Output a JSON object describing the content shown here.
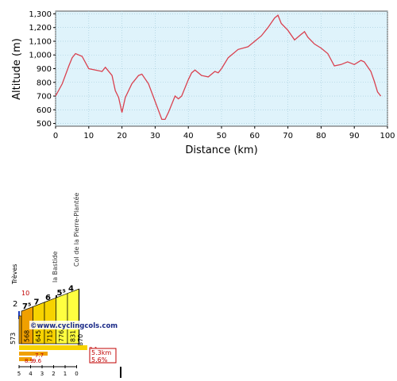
{
  "chart_data": [
    {
      "type": "line",
      "title": "",
      "xlabel": "Distance (km)",
      "ylabel": "Altitude (m)",
      "xlim": [
        0,
        100
      ],
      "ylim": [
        480,
        1320
      ],
      "x_ticks": [
        0,
        10,
        20,
        30,
        40,
        50,
        60,
        70,
        80,
        90,
        100
      ],
      "y_ticks": [
        500,
        600,
        700,
        800,
        900,
        1000,
        1100,
        1200,
        1300
      ],
      "y_tick_labels": [
        "500",
        "600",
        "700",
        "800",
        "900",
        "1,000",
        "1,100",
        "1,200",
        "1,300"
      ],
      "x_tick_labels": [
        "0",
        "10",
        "20",
        "30",
        "40",
        "50",
        "60",
        "70",
        "80",
        "90",
        "100"
      ],
      "grid": true,
      "colors": {
        "line": "#d9414f",
        "plot_bg": "#dff3fb",
        "grid": "#9ec8d8"
      },
      "series": [
        {
          "x": [
            0,
            2,
            4,
            5,
            6,
            8,
            10,
            12,
            14,
            15,
            17,
            18,
            19,
            20,
            21,
            23,
            25,
            26,
            28,
            30,
            32,
            33,
            34,
            36,
            37,
            38,
            40,
            41,
            42,
            44,
            46,
            48,
            49,
            50,
            52,
            55,
            58,
            60,
            62,
            64,
            66,
            67,
            68,
            70,
            72,
            74,
            75,
            76,
            78,
            80,
            82,
            84,
            86,
            88,
            90,
            92,
            93,
            95,
            96,
            97,
            98
          ],
          "y": [
            700,
            790,
            920,
            980,
            1010,
            990,
            900,
            890,
            880,
            910,
            850,
            740,
            690,
            580,
            690,
            790,
            850,
            860,
            790,
            660,
            530,
            530,
            580,
            700,
            680,
            700,
            820,
            870,
            890,
            850,
            840,
            880,
            870,
            900,
            980,
            1040,
            1060,
            1100,
            1140,
            1200,
            1270,
            1290,
            1230,
            1180,
            1110,
            1150,
            1170,
            1130,
            1080,
            1050,
            1010,
            920,
            930,
            950,
            930,
            960,
            950,
            880,
            810,
            730,
            700
          ]
        }
      ]
    },
    {
      "type": "bar",
      "title": "",
      "categories": [
        "5",
        "4",
        "3",
        "2",
        "1",
        "0"
      ],
      "gradients": [
        7.5,
        7,
        6,
        5.5,
        4
      ],
      "gradient_labels": [
        "7⁵",
        "7",
        "6",
        "5⁵",
        "4"
      ],
      "altitudes": [
        573,
        568,
        645,
        715,
        776,
        831,
        870
      ],
      "places": [
        "Trèves",
        "la Bastide",
        "Col de la Pierre-Plantée"
      ],
      "start_gradient_label": "2",
      "max_gradient_label": "10",
      "axis_ticks": [
        "5",
        "4",
        "3",
        "2",
        "1",
        "0"
      ],
      "watermark": "©www.cyclingcols.com",
      "summary": {
        "length": "5.3km",
        "grade": "5.6%"
      },
      "small_labels": [
        "8.1",
        "7.7",
        "8.9",
        "9.6"
      ],
      "colors": {
        "steep": "#f0a000",
        "mid": "#f7d300",
        "easy": "#ffff40",
        "frame": "#000000"
      }
    }
  ]
}
